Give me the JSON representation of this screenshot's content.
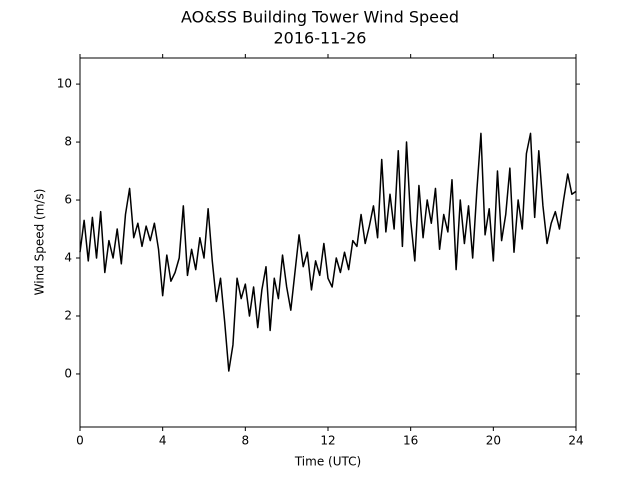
{
  "chart_data": {
    "type": "line",
    "title": "AO&SS Building Tower Wind Speed",
    "subtitle": "2016-11-26",
    "x_label": "Time (UTC)",
    "y_label": "Wind Speed (m/s)",
    "x": [
      0,
      0.2,
      0.4,
      0.6,
      0.8,
      1,
      1.2,
      1.4,
      1.6,
      1.8,
      2,
      2.2,
      2.4,
      2.6,
      2.8,
      3,
      3.2,
      3.4,
      3.6,
      3.8,
      4,
      4.2,
      4.4,
      4.6,
      4.8,
      5,
      5.2,
      5.4,
      5.6,
      5.8,
      6,
      6.2,
      6.4,
      6.6,
      6.8,
      7,
      7.2,
      7.4,
      7.6,
      7.8,
      8,
      8.2,
      8.4,
      8.6,
      8.8,
      9,
      9.2,
      9.4,
      9.6,
      9.8,
      10,
      10.2,
      10.4,
      10.6,
      10.8,
      11,
      11.2,
      11.4,
      11.6,
      11.8,
      12,
      12.2,
      12.4,
      12.6,
      12.8,
      13,
      13.2,
      13.4,
      13.6,
      13.8,
      14,
      14.2,
      14.4,
      14.6,
      14.8,
      15,
      15.2,
      15.4,
      15.6,
      15.8,
      16,
      16.2,
      16.4,
      16.6,
      16.8,
      17,
      17.2,
      17.4,
      17.6,
      17.8,
      18,
      18.2,
      18.4,
      18.6,
      18.8,
      19,
      19.2,
      19.4,
      19.6,
      19.8,
      20,
      20.2,
      20.4,
      20.6,
      20.8,
      21,
      21.2,
      21.4,
      21.6,
      21.8,
      22,
      22.2,
      22.4,
      22.6,
      22.8,
      23,
      23.2,
      23.4,
      23.6,
      23.8,
      24
    ],
    "series": [
      {
        "color": "#000000",
        "values": [
          4.2,
          5.3,
          3.9,
          5.4,
          4.0,
          5.6,
          3.5,
          4.6,
          4.0,
          5.0,
          3.8,
          5.5,
          6.4,
          4.7,
          5.2,
          4.4,
          5.1,
          4.6,
          5.2,
          4.3,
          2.7,
          4.1,
          3.2,
          3.5,
          4.0,
          5.8,
          3.4,
          4.3,
          3.6,
          4.7,
          4.0,
          5.7,
          3.9,
          2.5,
          3.3,
          1.8,
          0.1,
          1.0,
          3.3,
          2.6,
          3.1,
          2.0,
          3.0,
          1.6,
          2.9,
          3.7,
          1.5,
          3.3,
          2.6,
          4.1,
          3.0,
          2.2,
          3.5,
          4.8,
          3.7,
          4.2,
          2.9,
          3.9,
          3.4,
          4.5,
          3.3,
          3.0,
          4.0,
          3.5,
          4.2,
          3.6,
          4.6,
          4.4,
          5.5,
          4.5,
          5.1,
          5.8,
          4.7,
          7.4,
          4.9,
          6.2,
          5.0,
          7.7,
          4.4,
          8.0,
          5.3,
          3.9,
          6.5,
          4.7,
          6.0,
          5.2,
          6.4,
          4.3,
          5.5,
          4.9,
          6.7,
          3.6,
          6.0,
          4.5,
          5.8,
          4.0,
          6.3,
          8.3,
          4.8,
          5.7,
          3.9,
          7.0,
          4.6,
          5.5,
          7.1,
          4.2,
          6.0,
          5.0,
          7.6,
          8.3,
          5.4,
          7.7,
          5.8,
          4.5,
          5.2,
          5.6,
          5.0,
          6.0,
          6.9,
          6.2,
          6.3
        ]
      }
    ],
    "xlim": [
      0,
      24
    ],
    "xticks": [
      0,
      4,
      8,
      12,
      16,
      20,
      24
    ],
    "ylim": [
      -1.83,
      10.9
    ],
    "yticks": [
      0,
      2,
      4,
      6,
      8,
      10
    ],
    "grid": false
  }
}
